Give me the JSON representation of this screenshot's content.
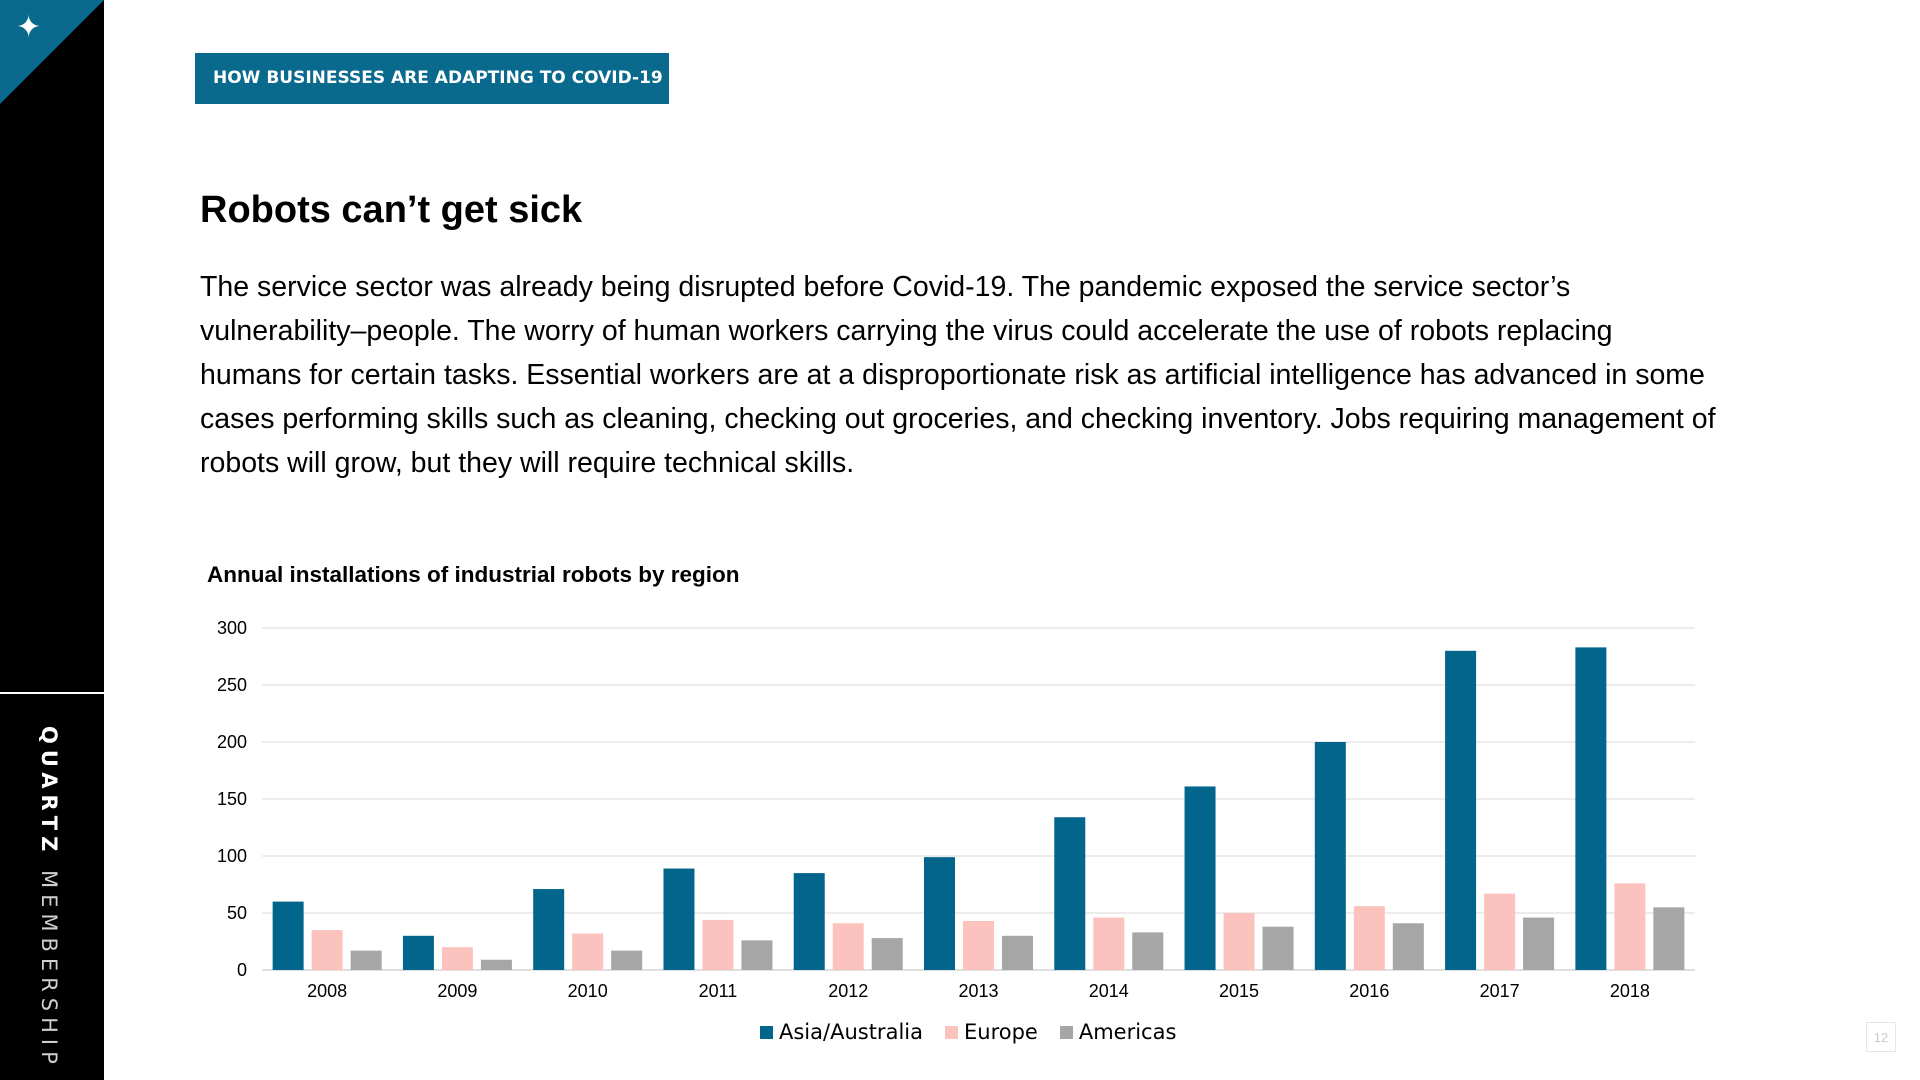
{
  "sidebar": {
    "star_icon": "✦",
    "brand_bold": "QUARTZ",
    "brand_light": "MEMBERSHIP"
  },
  "header": {
    "tag": "HOW BUSINESSES ARE ADAPTING TO COVID-19"
  },
  "main": {
    "title": "Robots can’t get sick",
    "body": "The service sector was already being disrupted before Covid-19. The pandemic exposed the service sector’s vulnerability–people. The worry of human workers carrying the virus could accelerate the use of robots replacing humans for certain tasks. Essential workers are at a disproportionate risk as artificial intelligence has advanced in some cases performing skills such as cleaning, checking out groceries, and checking inventory. Jobs requiring management of robots will grow, but they will require technical skills."
  },
  "page_number": "12",
  "chart_data": {
    "type": "bar",
    "title": "Annual installations of industrial robots by region",
    "xlabel": "",
    "ylabel": "",
    "ylim": [
      0,
      300
    ],
    "yticks": [
      0,
      50,
      100,
      150,
      200,
      250,
      300
    ],
    "grid": true,
    "legend_position": "bottom",
    "categories": [
      "2008",
      "2009",
      "2010",
      "2011",
      "2012",
      "2013",
      "2014",
      "2015",
      "2016",
      "2017",
      "2018"
    ],
    "series": [
      {
        "name": "Asia/Australia",
        "color": "#02668c",
        "values": [
          60,
          30,
          71,
          89,
          85,
          99,
          134,
          161,
          200,
          280,
          283
        ]
      },
      {
        "name": "Europe",
        "color": "#fcc2be",
        "values": [
          35,
          20,
          32,
          44,
          41,
          43,
          46,
          50,
          56,
          67,
          76
        ]
      },
      {
        "name": "Americas",
        "color": "#a6a6a6",
        "values": [
          17,
          9,
          17,
          26,
          28,
          30,
          33,
          38,
          41,
          46,
          55
        ]
      }
    ]
  }
}
